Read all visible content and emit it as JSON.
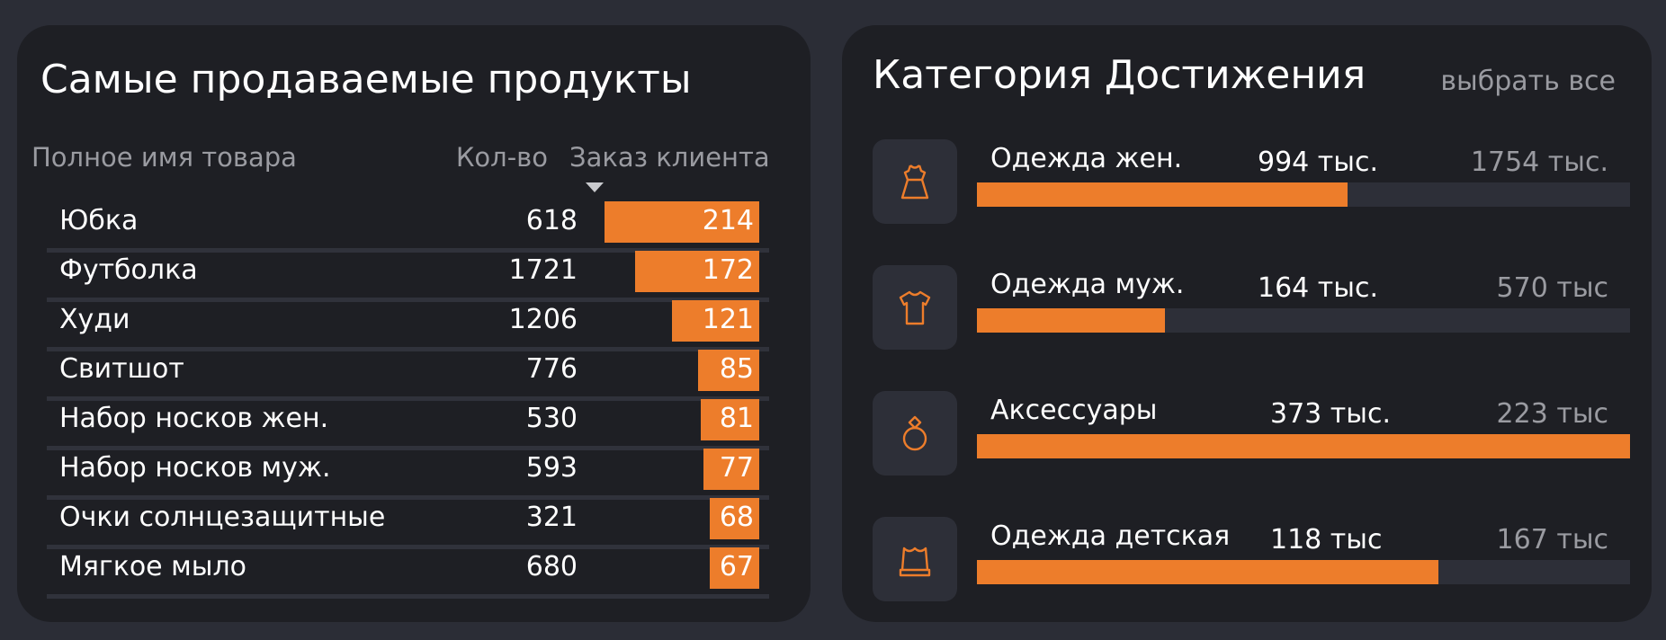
{
  "accent_color": "#ed7d2b",
  "top_products": {
    "title": "Самые продаваемые продукты",
    "columns": {
      "name": "Полное имя товара",
      "qty": "Кол-во",
      "order": "Заказ клиента"
    },
    "sort_indicator_icon": "triangle-down-icon",
    "max_order": 214,
    "rows": [
      {
        "name": "Юбка",
        "qty": "618",
        "order": 214
      },
      {
        "name": "Футболка",
        "qty": "1721",
        "order": 172
      },
      {
        "name": "Худи",
        "qty": "1206",
        "order": 121
      },
      {
        "name": "Свитшот",
        "qty": "776",
        "order": 85
      },
      {
        "name": "Набор носков жен.",
        "qty": "530",
        "order": 81
      },
      {
        "name": "Набор носков муж.",
        "qty": "593",
        "order": 77
      },
      {
        "name": "Очки солнцезащитные",
        "qty": "321",
        "order": 68
      },
      {
        "name": "Мягкое мыло",
        "qty": "680",
        "order": 67
      }
    ]
  },
  "categories": {
    "title": "Категория Достижения",
    "select_all": "выбрать все",
    "items": [
      {
        "name": "Одежда жен.",
        "value": "994 тыс.",
        "target": "1754 тыс.",
        "progress": 0.567,
        "icon": "dress-icon"
      },
      {
        "name": "Одежда муж.",
        "value": "164 тыс.",
        "target": "570 тыс",
        "progress": 0.288,
        "icon": "tshirt-icon"
      },
      {
        "name": "Аксессуары",
        "value": "373 тыс.",
        "target": "223 тыс",
        "progress": 1.0,
        "icon": "ring-icon"
      },
      {
        "name": "Одежда детская",
        "value": "118 тыс",
        "target": "167 тыс",
        "progress": 0.707,
        "icon": "hat-icon"
      }
    ]
  }
}
